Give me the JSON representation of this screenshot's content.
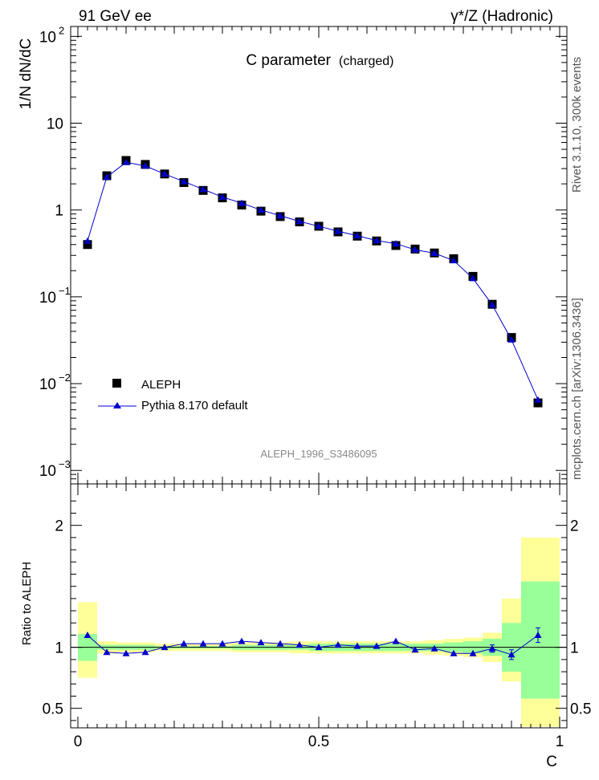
{
  "header": {
    "left": "91 GeV ee",
    "right": "γ*/Z (Hadronic)"
  },
  "side_labels": {
    "top": "Rivet 3.1.10,  300k events",
    "bottom": "mcplots.cern.ch [arXiv:1306.3436]"
  },
  "chart_data": [
    {
      "type": "scatter",
      "title": "C parameter",
      "subtitle": "(charged)",
      "ylabel": "1/N dN/dC",
      "yscale": "log",
      "ylim": [
        0.0007,
        130
      ],
      "xlim": [
        -0.015,
        1.015
      ],
      "watermark": "ALEPH_1996_S3486095",
      "y_ticks": [
        {
          "v": 100,
          "base": "10",
          "exp": "2"
        },
        {
          "v": 10,
          "base": "10",
          "exp": ""
        },
        {
          "v": 1,
          "base": "1",
          "exp": ""
        },
        {
          "v": 0.1,
          "base": "10",
          "exp": "−1"
        },
        {
          "v": 0.01,
          "base": "10",
          "exp": "−2"
        },
        {
          "v": 0.001,
          "base": "10",
          "exp": "−3"
        }
      ],
      "legend": {
        "position": "bottom-left"
      },
      "series": [
        {
          "name": "ALEPH",
          "marker": "square",
          "color": "#000000",
          "x": [
            0.02,
            0.06,
            0.1,
            0.14,
            0.18,
            0.22,
            0.26,
            0.3,
            0.34,
            0.38,
            0.42,
            0.46,
            0.5,
            0.54,
            0.58,
            0.62,
            0.66,
            0.7,
            0.74,
            0.78,
            0.82,
            0.86,
            0.9,
            0.955
          ],
          "y": [
            0.4,
            2.48,
            3.72,
            3.35,
            2.6,
            2.07,
            1.68,
            1.38,
            1.14,
            0.97,
            0.84,
            0.73,
            0.65,
            0.56,
            0.5,
            0.44,
            0.39,
            0.355,
            0.32,
            0.275,
            0.172,
            0.082,
            0.034,
            0.006
          ]
        },
        {
          "name": "Pythia 8.170 default",
          "marker": "triangle",
          "color": "#0000cc",
          "x": [
            0.02,
            0.06,
            0.1,
            0.14,
            0.18,
            0.22,
            0.26,
            0.3,
            0.34,
            0.38,
            0.42,
            0.46,
            0.5,
            0.54,
            0.58,
            0.62,
            0.66,
            0.7,
            0.74,
            0.78,
            0.82,
            0.86,
            0.9,
            0.955
          ],
          "y": [
            0.44,
            2.4,
            3.54,
            3.22,
            2.6,
            2.13,
            1.73,
            1.41,
            1.2,
            1.0,
            0.86,
            0.74,
            0.65,
            0.57,
            0.505,
            0.445,
            0.41,
            0.348,
            0.318,
            0.262,
            0.163,
            0.081,
            0.032,
            0.0065
          ]
        }
      ]
    },
    {
      "type": "scatter",
      "ylabel": "Ratio to ALEPH",
      "xlabel": "C",
      "ylim": [
        0.34,
        2.34
      ],
      "xlim": [
        -0.015,
        1.015
      ],
      "x_ticks": [
        {
          "v": 0,
          "label": "0"
        },
        {
          "v": 0.5,
          "label": "0.5"
        },
        {
          "v": 1,
          "label": "1"
        }
      ],
      "y_ticks": [
        {
          "v": 2,
          "label": "2"
        },
        {
          "v": 1,
          "label": "1"
        },
        {
          "v": 0.5,
          "label": "0.5"
        }
      ],
      "band_colors": {
        "outer": "#ffff99",
        "inner": "#99ff99"
      },
      "bins": {
        "lo": [
          0.0,
          0.04,
          0.08,
          0.12,
          0.16,
          0.2,
          0.24,
          0.28,
          0.32,
          0.36,
          0.4,
          0.44,
          0.48,
          0.52,
          0.56,
          0.6,
          0.64,
          0.68,
          0.72,
          0.76,
          0.8,
          0.84,
          0.88,
          0.92
        ],
        "hi": [
          0.04,
          0.08,
          0.12,
          0.16,
          0.2,
          0.24,
          0.28,
          0.32,
          0.36,
          0.4,
          0.44,
          0.48,
          0.52,
          0.56,
          0.6,
          0.64,
          0.68,
          0.72,
          0.76,
          0.8,
          0.84,
          0.88,
          0.92,
          1.0
        ],
        "outer_lo": [
          0.75,
          0.95,
          0.96,
          0.96,
          0.97,
          0.97,
          0.97,
          0.97,
          0.96,
          0.96,
          0.96,
          0.95,
          0.95,
          0.95,
          0.95,
          0.95,
          0.95,
          0.95,
          0.94,
          0.93,
          0.92,
          0.88,
          0.72,
          0.35
        ],
        "outer_hi": [
          1.37,
          1.05,
          1.04,
          1.04,
          1.03,
          1.03,
          1.03,
          1.03,
          1.04,
          1.04,
          1.04,
          1.05,
          1.05,
          1.05,
          1.05,
          1.05,
          1.05,
          1.05,
          1.06,
          1.07,
          1.08,
          1.12,
          1.4,
          1.9
        ],
        "inner_lo": [
          0.89,
          0.98,
          0.98,
          0.98,
          0.99,
          0.99,
          0.99,
          0.99,
          0.98,
          0.98,
          0.98,
          0.98,
          0.97,
          0.97,
          0.97,
          0.97,
          0.97,
          0.97,
          0.97,
          0.96,
          0.95,
          0.93,
          0.8,
          0.58
        ],
        "inner_hi": [
          1.11,
          1.02,
          1.02,
          1.02,
          1.01,
          1.01,
          1.01,
          1.01,
          1.02,
          1.02,
          1.02,
          1.02,
          1.03,
          1.03,
          1.03,
          1.03,
          1.03,
          1.03,
          1.03,
          1.04,
          1.05,
          1.07,
          1.2,
          1.54
        ]
      },
      "series": [
        {
          "name": "Pythia 8.170 default",
          "color": "#0000cc",
          "x": [
            0.02,
            0.06,
            0.1,
            0.14,
            0.18,
            0.22,
            0.26,
            0.3,
            0.34,
            0.38,
            0.42,
            0.46,
            0.5,
            0.54,
            0.58,
            0.62,
            0.66,
            0.7,
            0.74,
            0.78,
            0.82,
            0.86,
            0.9,
            0.955
          ],
          "y": [
            1.1,
            0.96,
            0.95,
            0.96,
            1.0,
            1.03,
            1.03,
            1.03,
            1.05,
            1.04,
            1.03,
            1.02,
            1.0,
            1.02,
            1.01,
            1.01,
            1.05,
            0.98,
            0.99,
            0.95,
            0.95,
            0.99,
            0.94,
            1.1
          ],
          "err": [
            0,
            0,
            0,
            0,
            0,
            0,
            0,
            0,
            0,
            0,
            0,
            0,
            0,
            0,
            0,
            0,
            0,
            0,
            0,
            0,
            0,
            0.03,
            0.04,
            0.06
          ]
        }
      ]
    }
  ]
}
